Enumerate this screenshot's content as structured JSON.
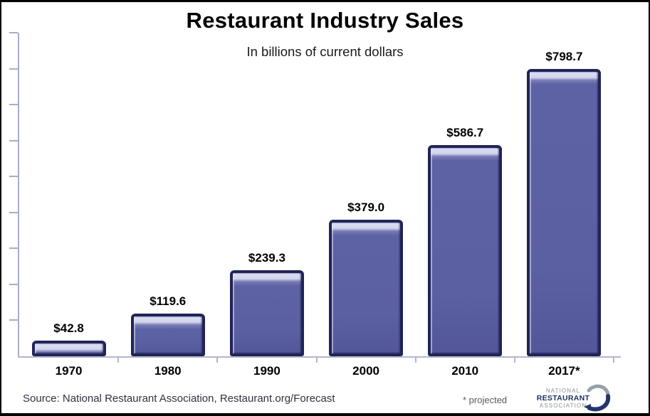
{
  "chart_data": {
    "type": "bar",
    "title": "Restaurant Industry Sales",
    "subtitle": "In billions of current dollars",
    "categories": [
      "1970",
      "1980",
      "1990",
      "2000",
      "2010",
      "2017*"
    ],
    "values": [
      42.8,
      119.6,
      239.3,
      379.0,
      586.7,
      798.7
    ],
    "value_labels": [
      "$42.8",
      "$119.6",
      "$239.3",
      "$379.0",
      "$586.7",
      "$798.7"
    ],
    "xlabel": "",
    "ylabel": "",
    "ylim": [
      0,
      900
    ],
    "y_tick_step": 100,
    "y_tick_labels_visible": false,
    "grid": false,
    "legend": false,
    "bar_fill_color": "#5d62a4",
    "bar_border_color": "#212456",
    "bar_highlight_color": "#d6d8ec",
    "axis_color": "#a9adc4"
  },
  "footer": {
    "source": "Source: National Restaurant Association, Restaurant.org/Forecast",
    "projected_note": "* projected",
    "logo": {
      "line1": "NATIONAL",
      "line2": "RESTAURANT",
      "line3": "ASSOCIATION",
      "swoosh_gray": "#9aa0a8",
      "swoosh_navy": "#24356b"
    }
  }
}
